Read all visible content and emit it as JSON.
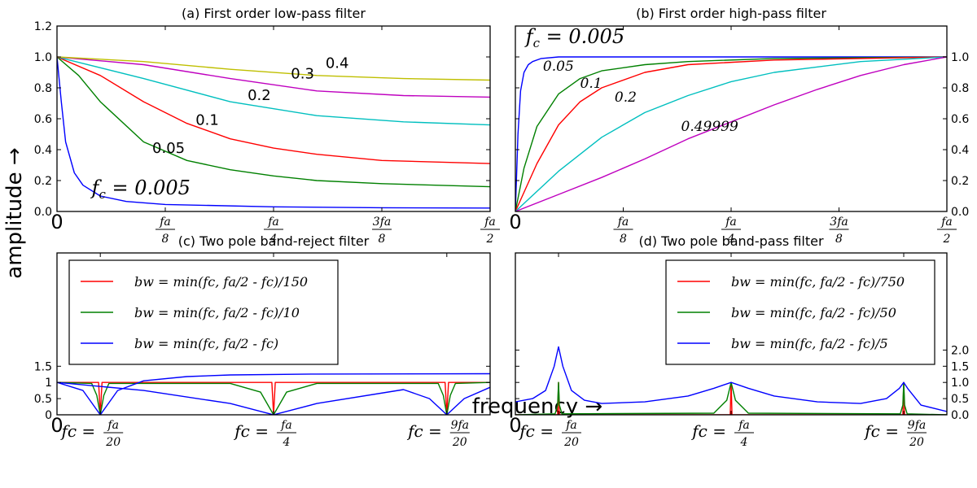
{
  "figure": {
    "ylabel": "amplitude →",
    "xlabel": "frequency →"
  },
  "chart_data": [
    {
      "type": "line",
      "title": "(a) First order low-pass filter",
      "xlim": [
        0,
        0.5
      ],
      "ylim": [
        0,
        1.2
      ],
      "y_axis_side": "left",
      "yticks": [
        0,
        0.2,
        0.4,
        0.6,
        0.8,
        1.0,
        1.2
      ],
      "ytick_labels": [
        "0.0",
        "0.2",
        "0.4",
        "0.6",
        "0.8",
        "1.0",
        "1.2"
      ],
      "xtick_labels": [
        "0",
        "fa/8",
        "fa/4",
        "3fa/8",
        "fa/2"
      ],
      "grid": false,
      "series": [
        {
          "name": "fc = 0.005",
          "color": "#0000ff",
          "x": [
            0,
            0.005,
            0.01,
            0.02,
            0.03,
            0.05,
            0.08,
            0.125,
            0.25,
            0.375,
            0.5
          ],
          "y": [
            1.0,
            0.71,
            0.45,
            0.25,
            0.17,
            0.1,
            0.065,
            0.045,
            0.03,
            0.024,
            0.022
          ]
        },
        {
          "name": "0.05",
          "color": "#008000",
          "x": [
            0,
            0.025,
            0.05,
            0.1,
            0.15,
            0.2,
            0.25,
            0.3,
            0.375,
            0.5
          ],
          "y": [
            1.0,
            0.88,
            0.71,
            0.45,
            0.33,
            0.27,
            0.23,
            0.2,
            0.18,
            0.16
          ]
        },
        {
          "name": "0.1",
          "color": "#ff0000",
          "x": [
            0,
            0.05,
            0.1,
            0.15,
            0.2,
            0.25,
            0.3,
            0.375,
            0.5
          ],
          "y": [
            1.0,
            0.88,
            0.71,
            0.57,
            0.47,
            0.41,
            0.37,
            0.33,
            0.31
          ]
        },
        {
          "name": "0.2",
          "color": "#00bfbf",
          "x": [
            0,
            0.1,
            0.2,
            0.3,
            0.4,
            0.5
          ],
          "y": [
            1.0,
            0.86,
            0.71,
            0.62,
            0.58,
            0.56
          ]
        },
        {
          "name": "0.3",
          "color": "#bf00bf",
          "x": [
            0,
            0.1,
            0.2,
            0.3,
            0.4,
            0.5
          ],
          "y": [
            1.0,
            0.95,
            0.86,
            0.78,
            0.75,
            0.74
          ]
        },
        {
          "name": "0.4",
          "color": "#bfbf00",
          "x": [
            0,
            0.1,
            0.2,
            0.3,
            0.4,
            0.5
          ],
          "y": [
            1.0,
            0.97,
            0.92,
            0.88,
            0.86,
            0.85
          ]
        }
      ],
      "annotations": [
        {
          "text": "fc = 0.005",
          "x": 0.04,
          "y": 0.11
        },
        {
          "text": "0.05",
          "x": 0.11,
          "y": 0.38
        },
        {
          "text": "0.1",
          "x": 0.16,
          "y": 0.56
        },
        {
          "text": "0.2",
          "x": 0.22,
          "y": 0.72
        },
        {
          "text": "0.3",
          "x": 0.27,
          "y": 0.86
        },
        {
          "text": "0.4",
          "x": 0.31,
          "y": 0.93
        }
      ]
    },
    {
      "type": "line",
      "title": "(b) First order high-pass filter",
      "xlim": [
        0,
        0.5
      ],
      "ylim": [
        0,
        1.2
      ],
      "y_axis_side": "right",
      "yticks": [
        0,
        0.2,
        0.4,
        0.6,
        0.8,
        1.0
      ],
      "ytick_labels": [
        "0.0",
        "0.2",
        "0.4",
        "0.6",
        "0.8",
        "1.0"
      ],
      "xtick_labels": [
        "0",
        "fa/8",
        "fa/4",
        "3fa/8",
        "fa/2"
      ],
      "grid": false,
      "series": [
        {
          "name": "fc = 0.005",
          "color": "#0000ff",
          "x": [
            0,
            0.003,
            0.006,
            0.01,
            0.015,
            0.02,
            0.03,
            0.05,
            0.1,
            0.5
          ],
          "y": [
            0,
            0.5,
            0.78,
            0.9,
            0.95,
            0.97,
            0.99,
            1.0,
            1.0,
            1.0
          ]
        },
        {
          "name": "0.05",
          "color": "#008000",
          "x": [
            0,
            0.01,
            0.025,
            0.05,
            0.075,
            0.1,
            0.15,
            0.2,
            0.3,
            0.5
          ],
          "y": [
            0,
            0.28,
            0.55,
            0.76,
            0.86,
            0.91,
            0.95,
            0.97,
            0.99,
            1.0
          ]
        },
        {
          "name": "0.1",
          "color": "#ff0000",
          "x": [
            0,
            0.025,
            0.05,
            0.075,
            0.1,
            0.15,
            0.2,
            0.3,
            0.4,
            0.5
          ],
          "y": [
            0,
            0.31,
            0.56,
            0.71,
            0.8,
            0.9,
            0.95,
            0.98,
            0.99,
            1.0
          ]
        },
        {
          "name": "0.2",
          "color": "#00bfbf",
          "x": [
            0,
            0.05,
            0.1,
            0.15,
            0.2,
            0.25,
            0.3,
            0.4,
            0.5
          ],
          "y": [
            0,
            0.26,
            0.48,
            0.64,
            0.75,
            0.84,
            0.9,
            0.97,
            1.0
          ]
        },
        {
          "name": "0.49999",
          "color": "#bf00bf",
          "x": [
            0,
            0.05,
            0.1,
            0.15,
            0.2,
            0.25,
            0.3,
            0.35,
            0.4,
            0.45,
            0.5
          ],
          "y": [
            0,
            0.11,
            0.22,
            0.34,
            0.47,
            0.58,
            0.69,
            0.79,
            0.88,
            0.95,
            1.0
          ]
        }
      ],
      "annotations": [
        {
          "text": "fc = 0.005",
          "x": 0.012,
          "y": 1.09
        },
        {
          "text": "0.05",
          "x": 0.032,
          "y": 0.91
        },
        {
          "text": "0.1",
          "x": 0.075,
          "y": 0.8
        },
        {
          "text": "0.2",
          "x": 0.115,
          "y": 0.71
        },
        {
          "text": "0.49999",
          "x": 0.192,
          "y": 0.52
        }
      ]
    },
    {
      "type": "line",
      "title": "(c) Two pole band-reject filter",
      "xlim": [
        0,
        0.5
      ],
      "ylim": [
        0,
        5
      ],
      "y_axis_side": "left",
      "yticks": [
        0,
        0.5,
        1,
        1.5
      ],
      "ytick_labels": [
        "0",
        "0.5",
        "1",
        "1.5"
      ],
      "xticks": [
        0,
        0.05,
        0.25,
        0.45
      ],
      "xtick_labels": [
        "0",
        "fc = fa/20",
        "fc = fa/4",
        "fc = 9fa/20"
      ],
      "grid": false,
      "legend": {
        "position": "upper-left",
        "entries": [
          "bw = min(fc, fa/2 - fc)/150",
          "bw = min(fc, fa/2 - fc)/10",
          "bw = min(fc, fa/2 - fc)"
        ]
      },
      "series": [
        {
          "name": "bw = min(fc, fa/2 - fc)/150",
          "color": "#ff0000",
          "x": [
            0,
            0.048,
            0.05,
            0.052,
            0.248,
            0.25,
            0.252,
            0.448,
            0.45,
            0.452,
            0.5
          ],
          "y": [
            1,
            1,
            0,
            1,
            1,
            0,
            1,
            1,
            0,
            1,
            1
          ]
        },
        {
          "name": "bw = min(fc, fa/2 - fc)/10",
          "color": "#008000",
          "x": [
            0,
            0.04,
            0.046,
            0.05,
            0.054,
            0.06,
            0.2,
            0.235,
            0.25,
            0.265,
            0.3,
            0.44,
            0.446,
            0.45,
            0.454,
            0.46,
            0.5
          ],
          "y": [
            1,
            0.97,
            0.6,
            0,
            0.6,
            0.97,
            0.97,
            0.7,
            0,
            0.7,
            0.97,
            0.97,
            0.6,
            0,
            0.6,
            0.97,
            1
          ]
        },
        {
          "name": "bw = min(fc, fa/2 - fc)",
          "color": "#0000ff",
          "x": [
            0,
            0.03,
            0.05,
            0.07,
            0.1,
            0.15,
            0.2,
            0.3,
            0.5
          ],
          "y": [
            1,
            0.75,
            0,
            0.75,
            1.05,
            1.18,
            1.23,
            1.26,
            1.27
          ]
        },
        {
          "name": "bw = min(fc, fa/2 - fc)",
          "color": "#0000ff",
          "x": [
            0,
            0.1,
            0.2,
            0.25,
            0.3,
            0.4,
            0.43,
            0.45,
            0.47,
            0.5
          ],
          "y": [
            1,
            0.75,
            0.35,
            0,
            0.35,
            0.78,
            0.5,
            0,
            0.5,
            0.85
          ]
        }
      ]
    },
    {
      "type": "line",
      "title": "(d) Two pole band-pass filter",
      "xlim": [
        0,
        0.5
      ],
      "ylim": [
        0,
        5
      ],
      "y_axis_side": "right",
      "yticks": [
        0,
        0.5,
        1,
        1.5,
        2
      ],
      "ytick_labels": [
        "0.0",
        "0.5",
        "1.0",
        "1.5",
        "2.0"
      ],
      "xticks": [
        0,
        0.05,
        0.25,
        0.45
      ],
      "xtick_labels": [
        "0",
        "fc = fa/20",
        "fc = fa/4",
        "fc = 9fa/20"
      ],
      "grid": false,
      "legend": {
        "position": "upper-right",
        "entries": [
          "bw = min(fc, fa/2 - fc)/750",
          "bw = min(fc, fa/2 - fc)/50",
          "bw = min(fc, fa/2 - fc)/5"
        ]
      },
      "series": [
        {
          "name": "bw = min(fc, fa/2 - fc)/750",
          "color": "#ff0000",
          "x": [
            0,
            0.049,
            0.05,
            0.051,
            0.249,
            0.25,
            0.251,
            0.449,
            0.45,
            0.451,
            0.5
          ],
          "y": [
            0,
            0,
            1,
            0,
            0,
            1,
            0,
            0,
            1,
            0,
            0
          ]
        },
        {
          "name": "bw = min(fc, fa/2 - fc)/50",
          "color": "#008000",
          "x": [
            0,
            0.046,
            0.049,
            0.05,
            0.051,
            0.054,
            0.23,
            0.245,
            0.25,
            0.255,
            0.27,
            0.446,
            0.449,
            0.45,
            0.451,
            0.454,
            0.5
          ],
          "y": [
            0,
            0.03,
            0.3,
            1.0,
            0.3,
            0.03,
            0.05,
            0.45,
            1.0,
            0.45,
            0.05,
            0.03,
            0.3,
            1.0,
            0.3,
            0.03,
            0
          ]
        },
        {
          "name": "bw = min(fc, fa/2 - fc)/5",
          "color": "#0000ff",
          "x": [
            0,
            0.02,
            0.035,
            0.045,
            0.05,
            0.055,
            0.065,
            0.08,
            0.1,
            0.15,
            0.2,
            0.23,
            0.25,
            0.27,
            0.3,
            0.35,
            0.4,
            0.43,
            0.445,
            0.45,
            0.455,
            0.47,
            0.5
          ],
          "y": [
            0.4,
            0.5,
            0.75,
            1.5,
            2.1,
            1.5,
            0.75,
            0.45,
            0.35,
            0.4,
            0.58,
            0.82,
            1.0,
            0.82,
            0.58,
            0.4,
            0.35,
            0.5,
            0.82,
            1.0,
            0.8,
            0.3,
            0.1
          ]
        }
      ]
    }
  ]
}
